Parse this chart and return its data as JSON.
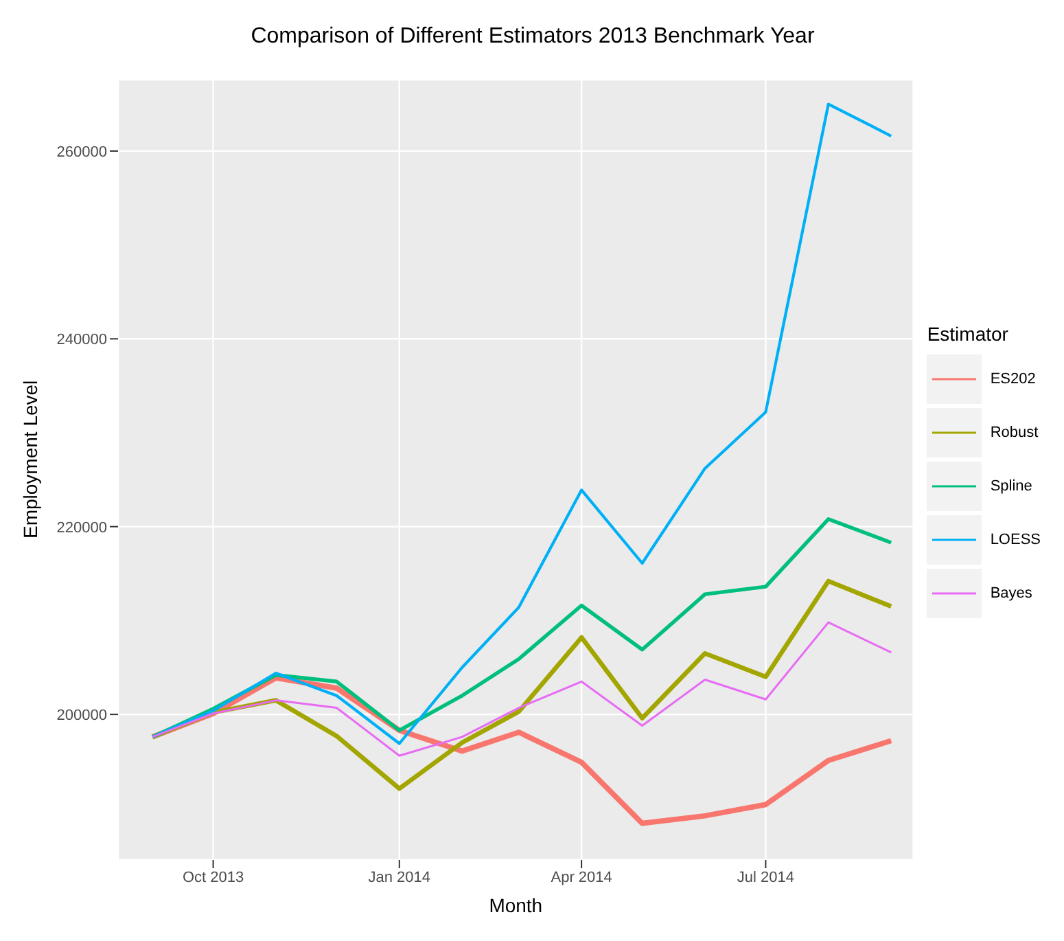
{
  "chart_data": {
    "type": "line",
    "title": "Comparison of Different Estimators 2013 Benchmark Year",
    "xlabel": "Month",
    "ylabel": "Employment Level",
    "legend_title": "Estimator",
    "x": [
      "2013-09-01",
      "2013-10-01",
      "2013-11-01",
      "2013-12-01",
      "2014-01-01",
      "2014-02-01",
      "2014-03-01",
      "2014-04-01",
      "2014-05-01",
      "2014-06-01",
      "2014-07-01",
      "2014-08-01",
      "2014-09-01"
    ],
    "series": [
      {
        "name": "ES202",
        "color": "#f8766d",
        "values": [
          197600,
          200100,
          203900,
          202800,
          198300,
          196100,
          198100,
          194900,
          188400,
          189200,
          190400,
          195100,
          197200
        ]
      },
      {
        "name": "Robust",
        "color": "#a3a500",
        "values": [
          197600,
          200200,
          201500,
          197700,
          192100,
          197000,
          200300,
          208200,
          199600,
          206500,
          204000,
          214200,
          211500
        ]
      },
      {
        "name": "Spline",
        "color": "#00bf7d",
        "values": [
          197600,
          200600,
          204200,
          203500,
          198300,
          202000,
          205900,
          211600,
          206900,
          212800,
          213600,
          220800,
          218300
        ]
      },
      {
        "name": "LOESS",
        "color": "#00b0f6",
        "values": [
          197600,
          200400,
          204400,
          202000,
          196900,
          205000,
          211400,
          223900,
          216100,
          226200,
          232200,
          265000,
          261600
        ]
      },
      {
        "name": "Bayes",
        "color": "#e76bf3",
        "values": [
          197600,
          200100,
          201500,
          200700,
          195600,
          197600,
          200700,
          203500,
          198800,
          203700,
          201600,
          209800,
          206600
        ]
      }
    ],
    "xlim": [
      "2013-08-15",
      "2014-09-12"
    ],
    "xticks": [
      {
        "value": "2013-10-01",
        "label": "Oct 2013"
      },
      {
        "value": "2014-01-01",
        "label": "Jan 2014"
      },
      {
        "value": "2014-04-01",
        "label": "Apr 2014"
      },
      {
        "value": "2014-07-01",
        "label": "Jul 2014"
      }
    ],
    "ylim": [
      184500,
      267600
    ],
    "yticks": [
      200000,
      220000,
      240000,
      260000
    ],
    "grid": true,
    "legend": "right",
    "marker": "none",
    "line_style": "solid"
  }
}
